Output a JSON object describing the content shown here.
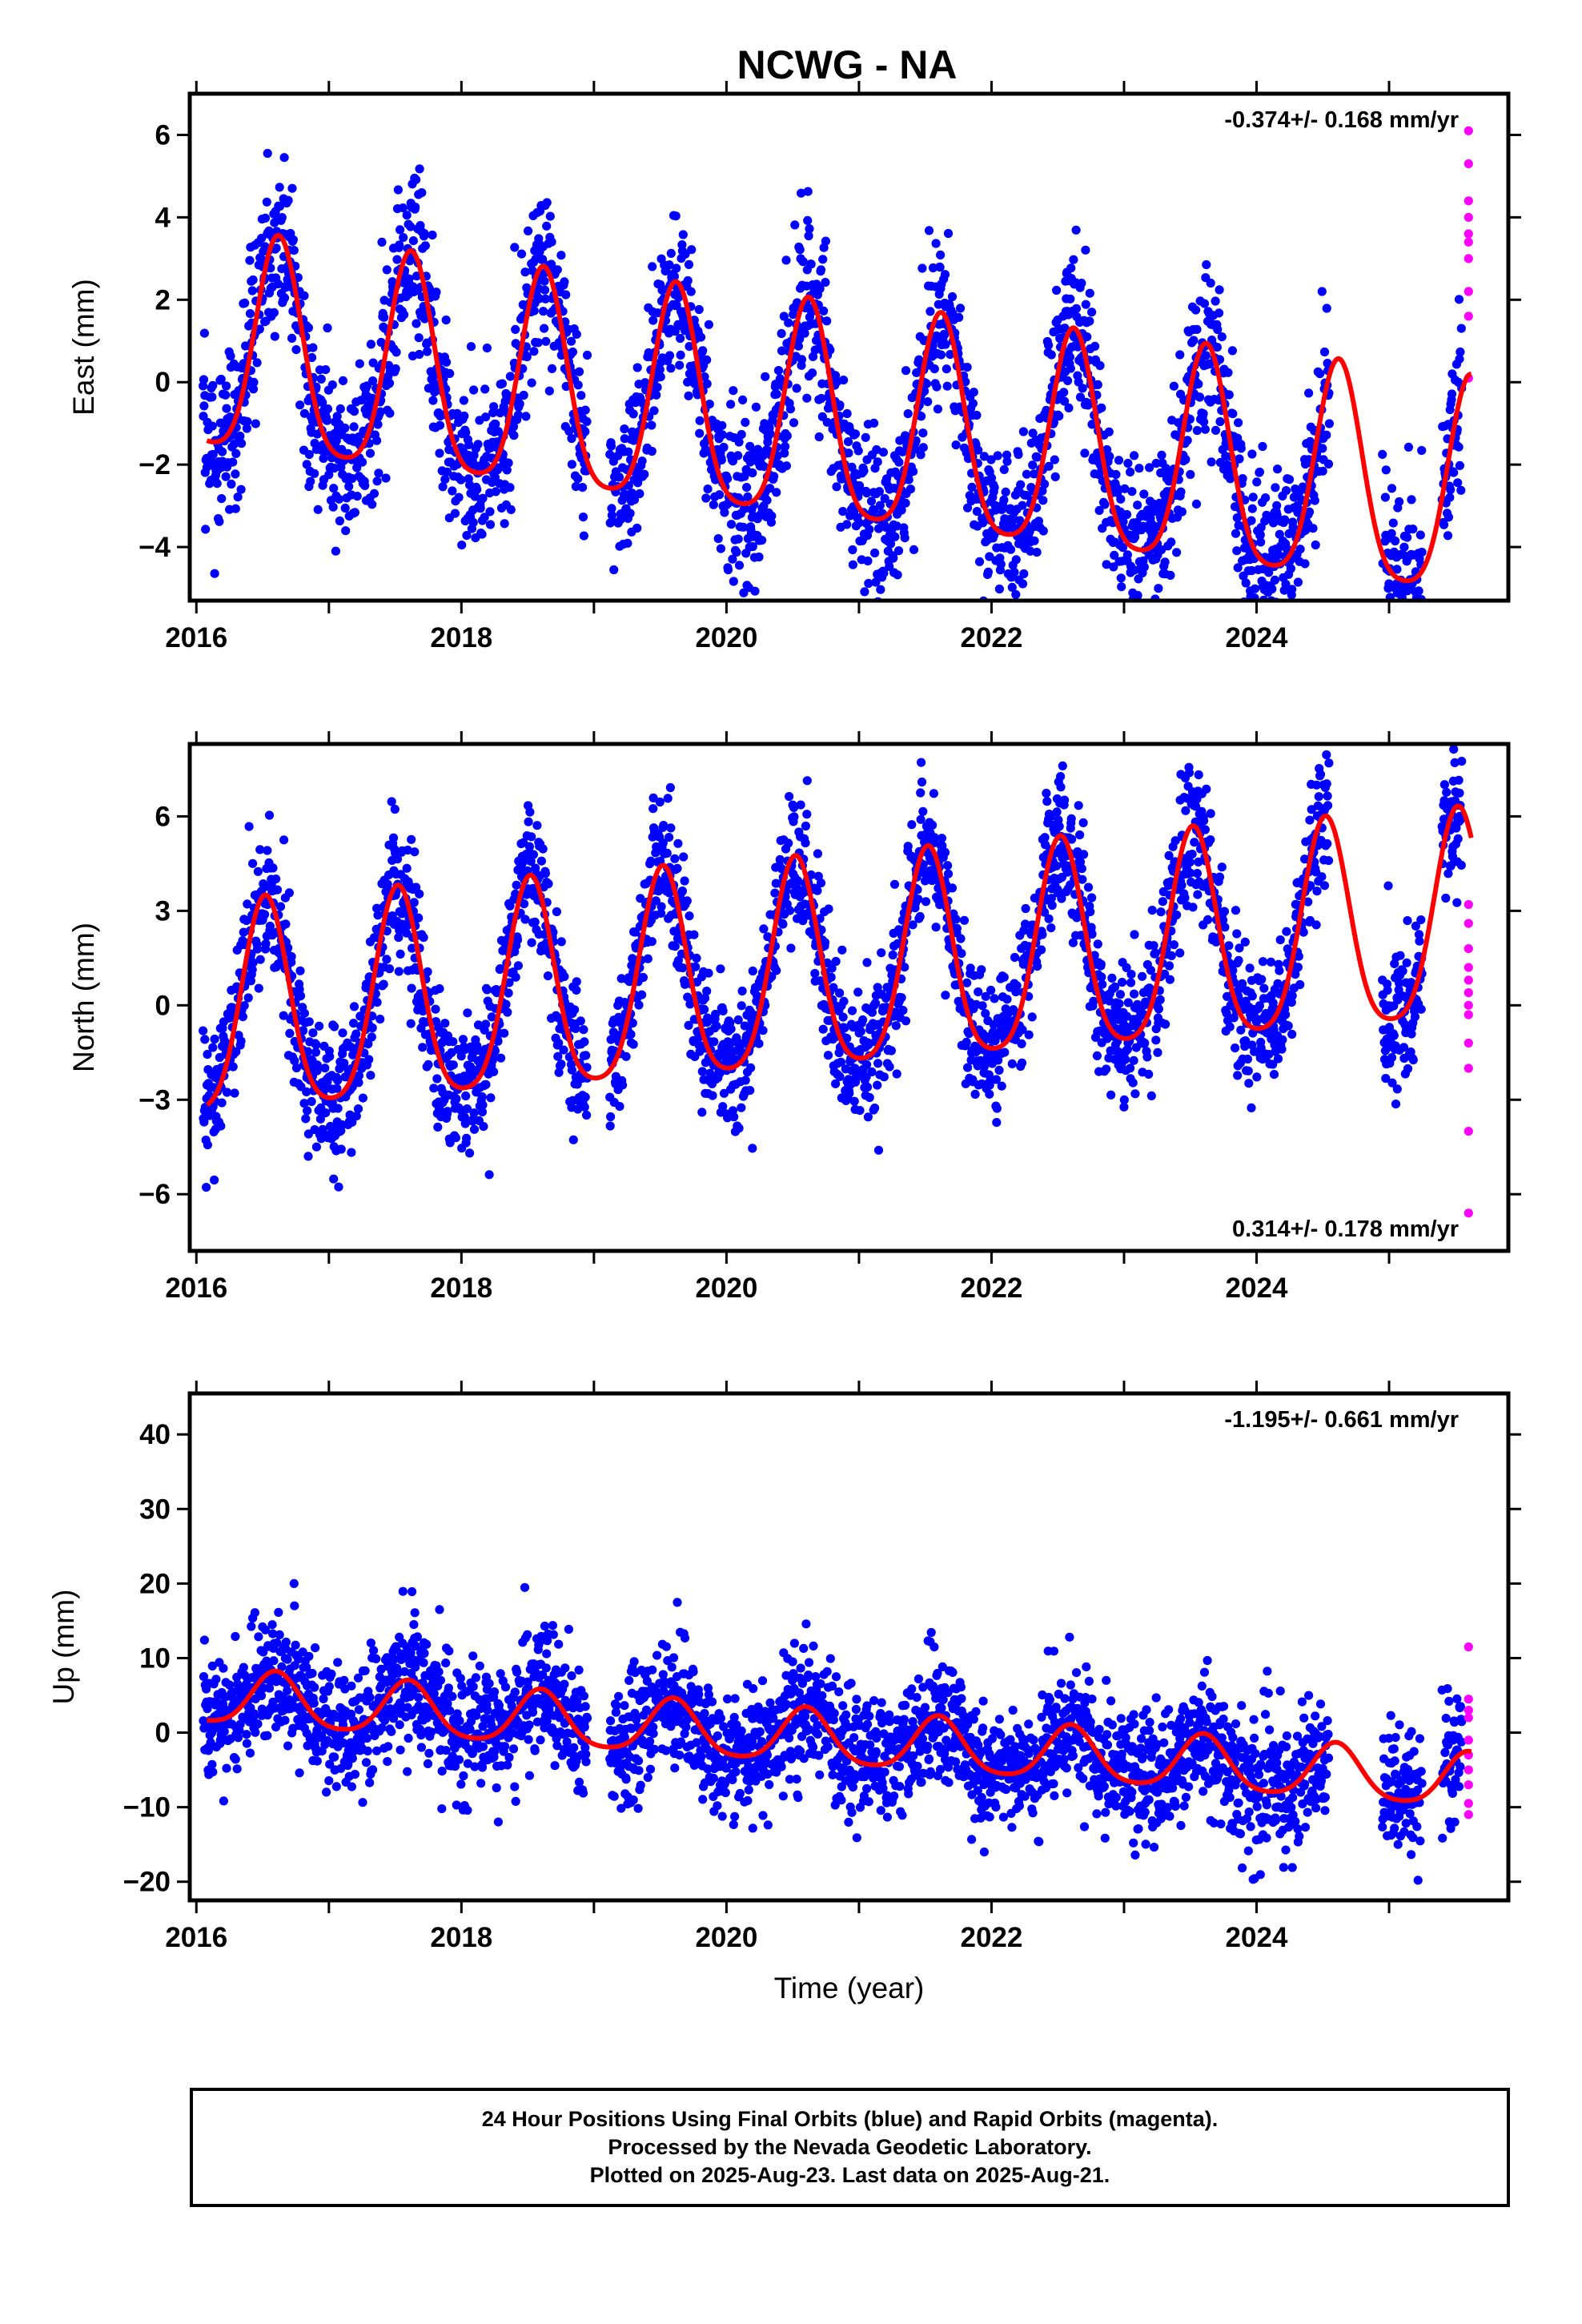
{
  "title": "NCWG - NA",
  "colors": {
    "final": "#0000ff",
    "rapid": "#ff00ff",
    "fit": "#ff0000"
  },
  "chart_data": [
    {
      "type": "scatter",
      "component": "east",
      "ylabel": "East (mm)",
      "rate_label": "-0.374+/- 0.168 mm/yr",
      "rate_position": "top-right",
      "xlim": [
        2015.95,
        2025.9
      ],
      "ylim": [
        -5.3,
        7.0
      ],
      "yticks": [
        6,
        4,
        2,
        0,
        -2,
        -4
      ],
      "xticks": [
        "2016",
        "2018",
        "2020",
        "2022",
        "2024"
      ],
      "fit": {
        "trend": -0.374,
        "offset": -0.8,
        "ann_amp": 2.6,
        "ann_peak": 0.62,
        "semi_amp": 0.5,
        "semi_peak": 0.62,
        "ref_year": 2020
      },
      "noise": 1.0,
      "rapid_points": [
        6.1,
        5.3,
        4.4,
        4.0,
        3.6,
        3.4,
        3.0,
        2.2,
        1.6,
        0.1
      ]
    },
    {
      "type": "scatter",
      "component": "north",
      "ylabel": "North (mm)",
      "rate_label": "0.314+/- 0.178 mm/yr",
      "rate_position": "bottom-right",
      "xlim": [
        2015.95,
        2025.9
      ],
      "ylim": [
        -7.8,
        8.3
      ],
      "yticks": [
        6,
        3,
        0,
        -3,
        -6
      ],
      "xticks": [
        "2016",
        "2018",
        "2020",
        "2022",
        "2024"
      ],
      "fit": {
        "trend": 0.314,
        "offset": 0.7,
        "ann_amp": 3.3,
        "ann_peak": 0.52,
        "semi_amp": 0.6,
        "semi_peak": 0.52,
        "ref_year": 2020
      },
      "noise": 1.1,
      "rapid_points": [
        3.2,
        2.6,
        1.8,
        1.2,
        0.8,
        0.4,
        0.0,
        -0.3,
        -1.2,
        -2.0,
        -4.0,
        -6.6
      ]
    },
    {
      "type": "scatter",
      "component": "up",
      "ylabel": "Up (mm)",
      "rate_label": "-1.195+/- 0.661 mm/yr",
      "rate_position": "top-right",
      "xlim": [
        2015.95,
        2025.9
      ],
      "ylim": [
        -22.5,
        45.5
      ],
      "yticks": [
        40,
        30,
        20,
        10,
        0,
        -10,
        -20
      ],
      "xticks": [
        "2016",
        "2018",
        "2020",
        "2022",
        "2024"
      ],
      "xlabel": "Time (year)",
      "fit": {
        "trend": -1.195,
        "offset": 0.0,
        "ann_amp": 3.6,
        "ann_peak": 0.6,
        "semi_amp": 0.6,
        "semi_peak": 0.6,
        "ref_year": 2020
      },
      "noise": 4.3,
      "rapid_points": [
        11.5,
        4.5,
        3.0,
        2.0,
        -1.0,
        -3.0,
        -5.0,
        -7.0,
        -9.5,
        -11.0
      ]
    }
  ],
  "footer": {
    "line1": "24 Hour Positions Using Final Orbits (blue) and Rapid Orbits (magenta).",
    "line2": "Processed by the Nevada Geodetic Laboratory.",
    "line3": "Plotted on 2025-Aug-23. Last data on 2025-Aug-21."
  }
}
